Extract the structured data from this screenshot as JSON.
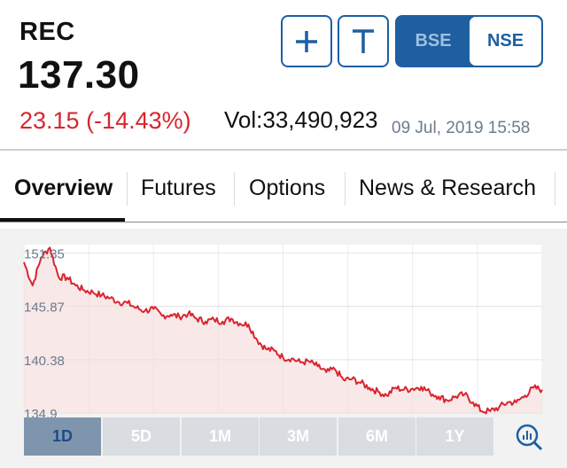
{
  "stock": {
    "symbol": "REC",
    "price": "137.30",
    "change": "23.15 (-14.43%)",
    "volume": "Vol:33,490,923",
    "timestamp": "09 Jul, 2019 15:58"
  },
  "actions": {
    "add_icon": "plus-icon",
    "trade_icon": "t-icon"
  },
  "exchange": {
    "options": [
      "BSE",
      "NSE"
    ],
    "selected": "NSE"
  },
  "tabs": [
    "Overview",
    "Futures",
    "Options",
    "News & Research"
  ],
  "active_tab": "Overview",
  "ranges": [
    "1D",
    "5D",
    "1M",
    "3M",
    "6M",
    "1Y"
  ],
  "active_range": "1D",
  "chart_icon": "chart-search-icon",
  "colors": {
    "accent": "#1d5fa1",
    "down": "#d9252f",
    "fill": "#f6dcdc"
  },
  "chart_data": {
    "type": "area",
    "title": "",
    "xlabel": "",
    "ylabel": "",
    "yticks": [
      "151.35",
      "145.87",
      "140.38",
      "134.9"
    ],
    "ylim": [
      134.9,
      152.2
    ],
    "grid": true,
    "x": [
      0,
      1,
      2,
      3,
      4,
      5,
      6,
      7,
      8,
      9,
      10,
      11,
      12,
      13,
      14,
      15,
      16,
      17,
      18,
      19,
      20,
      21,
      22,
      23,
      24,
      25,
      26,
      27,
      28,
      29,
      30,
      31,
      32,
      33,
      34,
      35,
      36,
      37,
      38,
      39,
      40,
      41,
      42,
      43,
      44,
      45,
      46,
      47,
      48,
      49,
      50,
      51,
      52,
      53,
      54,
      55,
      56,
      57,
      58,
      59,
      60
    ],
    "series": [
      {
        "values": [
          150.4,
          148.0,
          150.9,
          151.9,
          148.9,
          148.8,
          148.0,
          147.5,
          147.3,
          147.0,
          146.7,
          146.3,
          146.2,
          145.7,
          145.4,
          145.6,
          144.9,
          145.0,
          144.8,
          145.1,
          144.6,
          144.3,
          144.5,
          144.3,
          144.6,
          144.1,
          144.0,
          142.4,
          141.5,
          141.3,
          140.6,
          140.5,
          140.1,
          140.2,
          139.7,
          139.1,
          139.4,
          138.3,
          138.4,
          138.0,
          137.5,
          137.1,
          136.7,
          137.5,
          137.3,
          137.4,
          137.6,
          137.0,
          136.6,
          136.2,
          136.6,
          136.8,
          136.0,
          135.1,
          135.1,
          135.5,
          136.0,
          136.0,
          136.7,
          137.5,
          137.3
        ]
      }
    ]
  }
}
